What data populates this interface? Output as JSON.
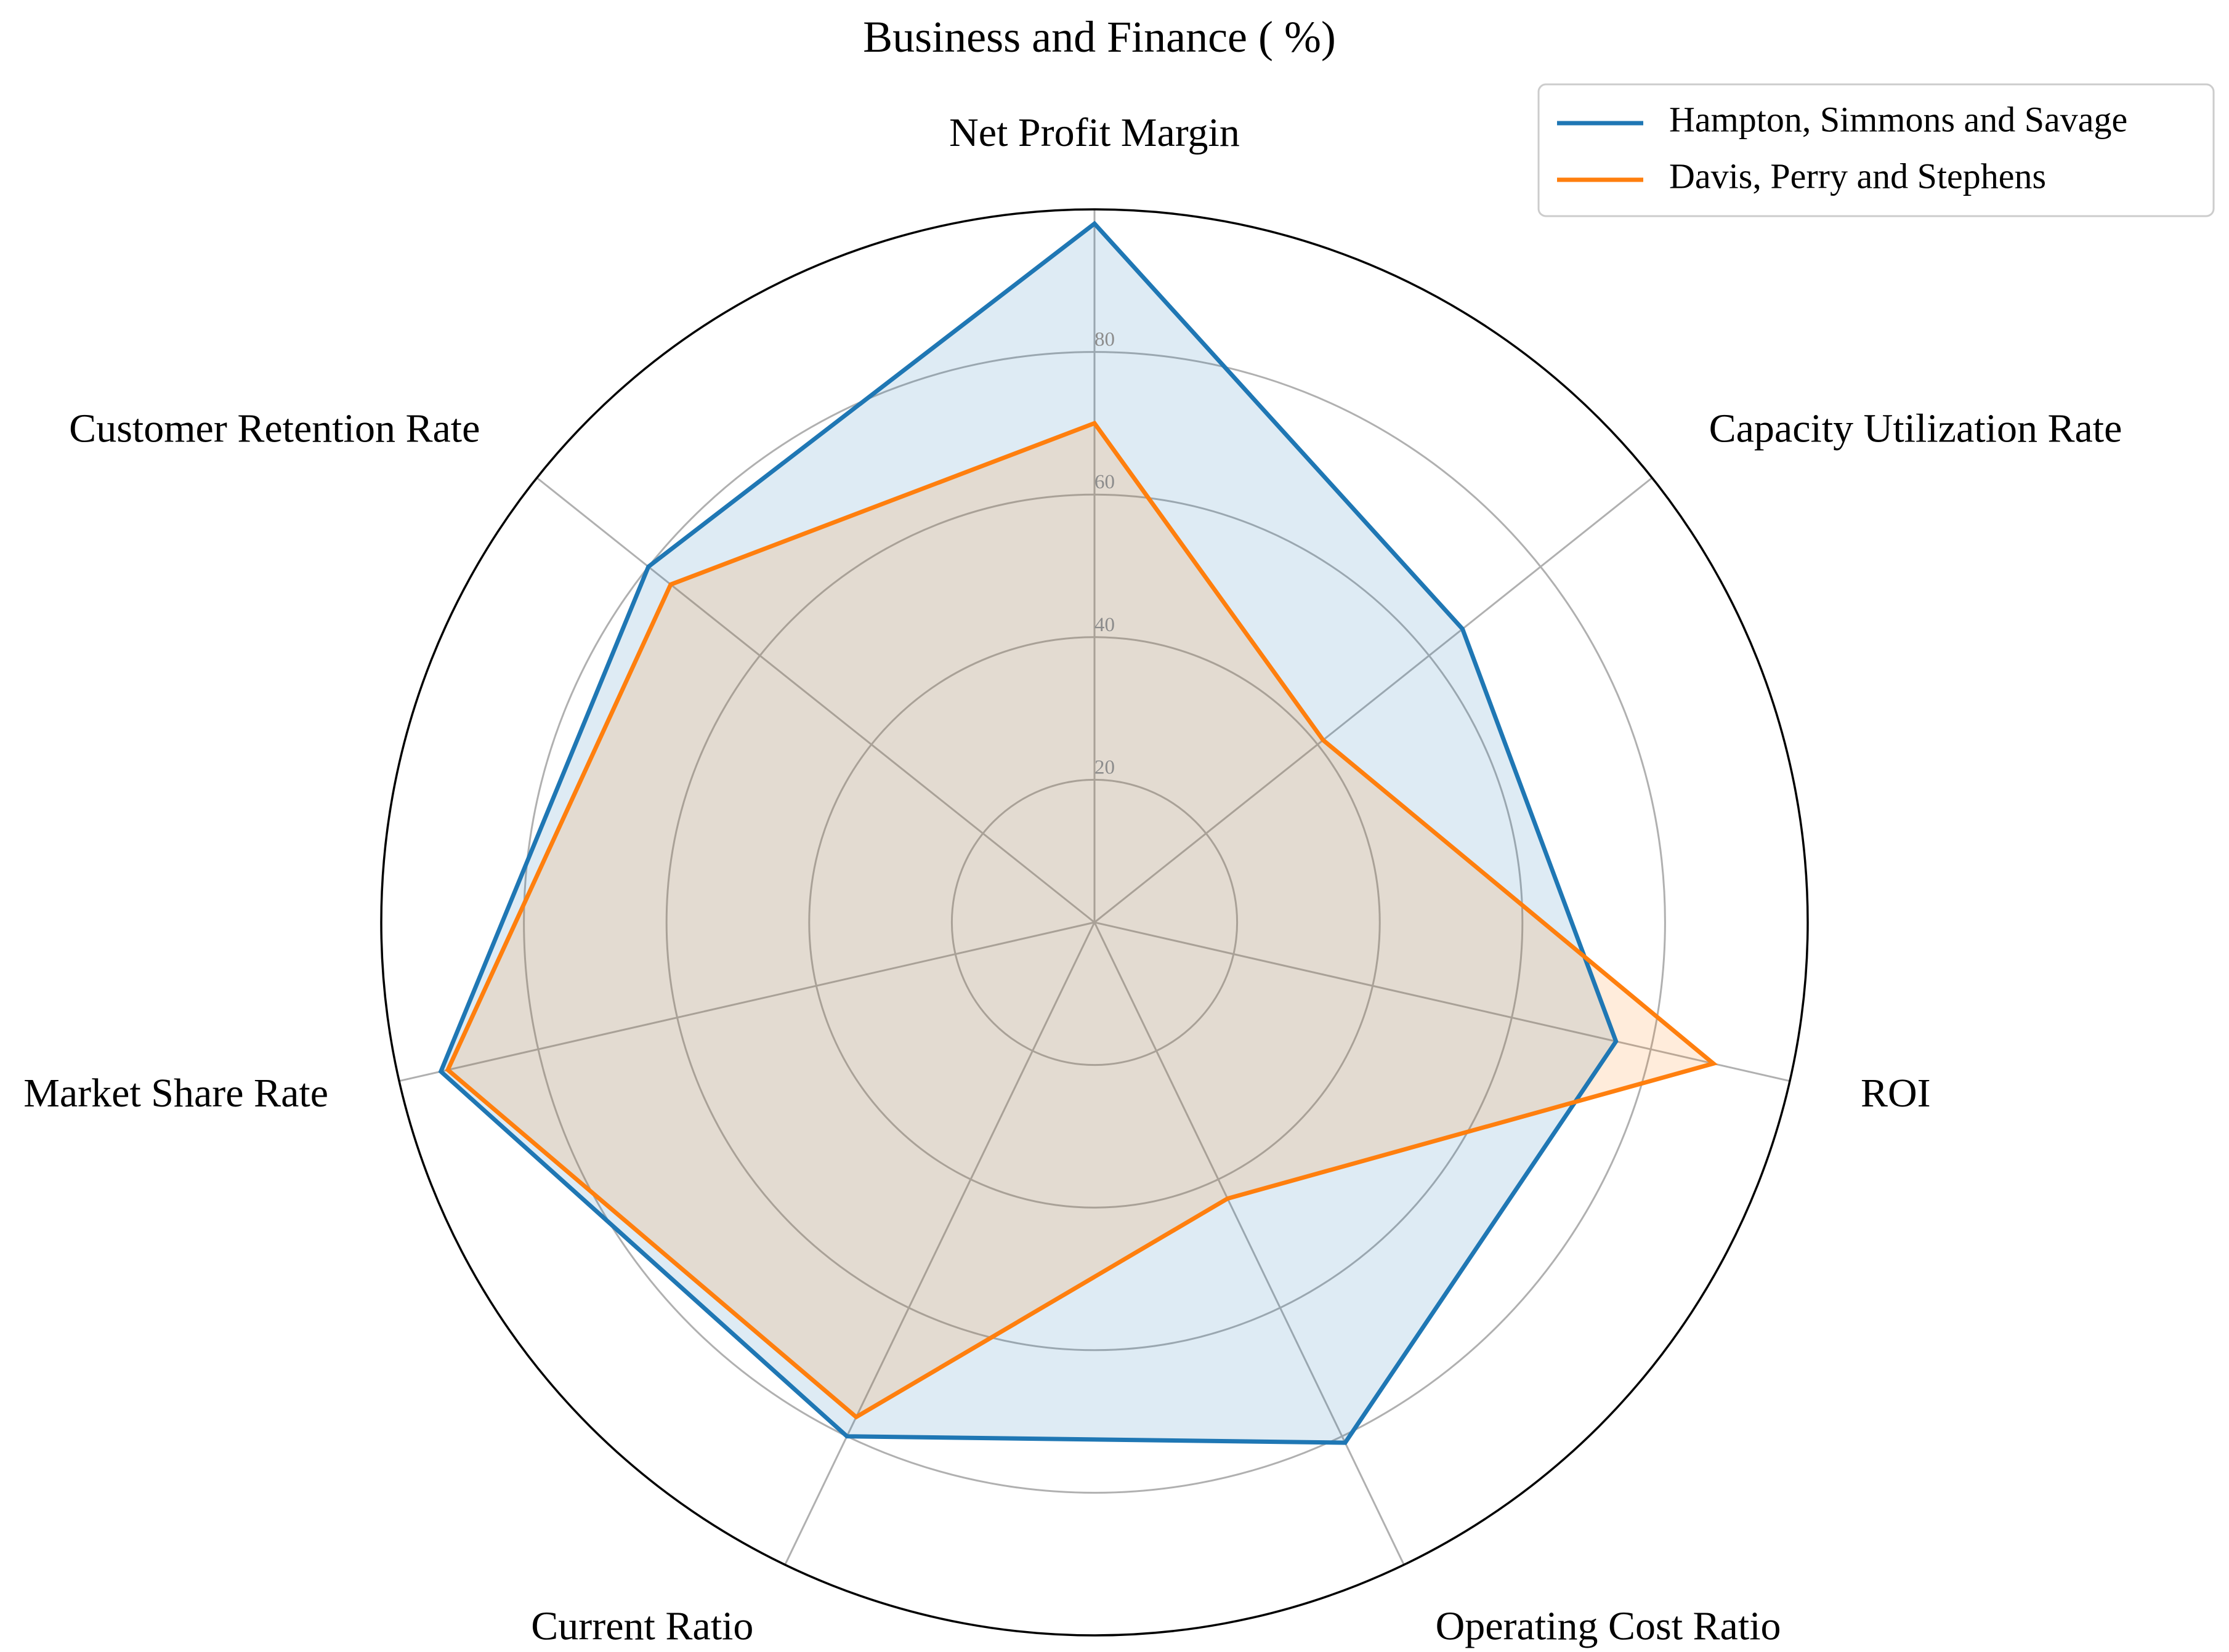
{
  "chart_data": {
    "type": "radar",
    "title": "Business and Finance ( %)",
    "axes": [
      "Net Profit Margin",
      "Capacity Utilization Rate",
      "ROI",
      "Operating Cost Ratio",
      "Current Ratio",
      "Market Share Rate",
      "Customer Retention Rate"
    ],
    "rlim": [
      0,
      100
    ],
    "rticks": [
      20,
      40,
      60,
      80
    ],
    "grid": true,
    "legend_position": "top-right",
    "series": [
      {
        "name": "Hampton, Simmons and Savage",
        "color": "#1f77b4",
        "values": [
          98,
          66,
          75,
          81,
          80,
          94,
          80
        ]
      },
      {
        "name": "Davis, Perry and Stephens",
        "color": "#ff7f0e",
        "values": [
          70,
          41,
          89,
          43,
          77,
          93,
          76
        ]
      }
    ]
  }
}
